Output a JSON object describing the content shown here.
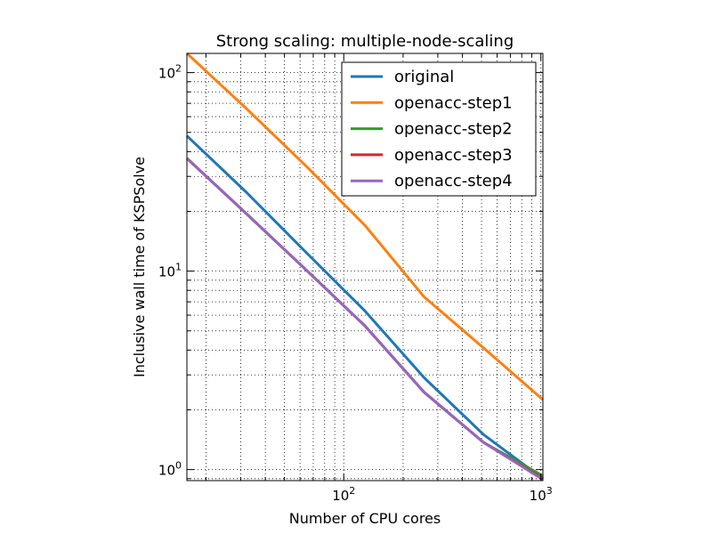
{
  "chart_data": {
    "type": "line",
    "title": "Strong scaling: multiple-node-scaling",
    "xlabel": "Number of CPU cores",
    "ylabel": "Inclusive wall time of KSPSolve",
    "xscale": "log",
    "yscale": "log",
    "xlim": [
      16,
      1024
    ],
    "ylim": [
      0.88,
      125
    ],
    "grid": true,
    "legend_position": "top-right",
    "x_ticks": [
      {
        "value": 100,
        "base": "10",
        "exp": "2"
      },
      {
        "value": 1000,
        "base": "10",
        "exp": "3"
      }
    ],
    "y_ticks": [
      {
        "value": 1,
        "base": "10",
        "exp": "0"
      },
      {
        "value": 10,
        "base": "10",
        "exp": "1"
      },
      {
        "value": 100,
        "base": "10",
        "exp": "2"
      }
    ],
    "x": [
      16,
      32,
      64,
      128,
      256,
      512,
      1024
    ],
    "series": [
      {
        "name": "original",
        "color": "#1f77b4",
        "values": [
          48,
          25,
          12.5,
          6.3,
          2.9,
          1.5,
          0.9
        ]
      },
      {
        "name": "openacc-step1",
        "color": "#ff7f0e",
        "values": [
          125,
          66,
          34,
          17,
          7.4,
          4.1,
          2.25
        ]
      },
      {
        "name": "openacc-step2",
        "color": "#2ca02c",
        "values": [
          37,
          19.5,
          10.2,
          5.3,
          2.45,
          1.37,
          0.93
        ]
      },
      {
        "name": "openacc-step3",
        "color": "#d62728",
        "values": [
          37,
          19.5,
          10.2,
          5.3,
          2.45,
          1.37,
          0.9
        ]
      },
      {
        "name": "openacc-step4",
        "color": "#9467bd",
        "values": [
          37,
          19.5,
          10.2,
          5.3,
          2.45,
          1.37,
          0.89
        ]
      }
    ]
  }
}
